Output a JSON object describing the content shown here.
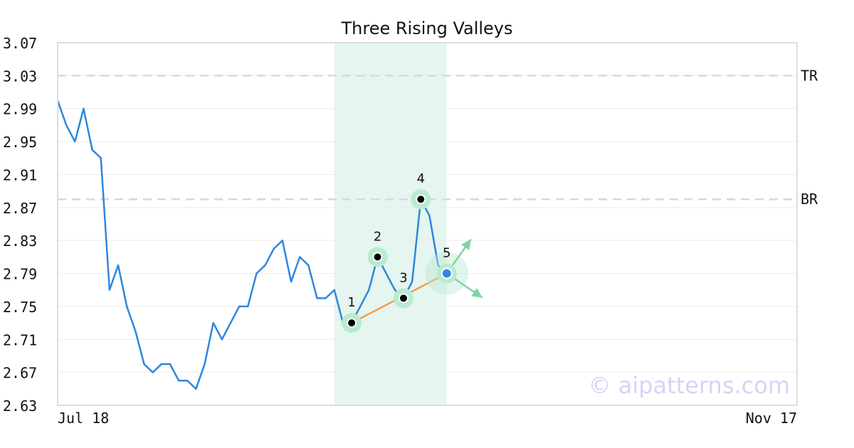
{
  "chart_data": {
    "type": "line",
    "title": "Three Rising Valleys",
    "x_tick_labels": [
      "Jul 18",
      "Nov 17"
    ],
    "y_ticks": [
      3.07,
      3.03,
      2.99,
      2.95,
      2.91,
      2.87,
      2.83,
      2.79,
      2.75,
      2.71,
      2.67,
      2.63
    ],
    "ylim": [
      2.63,
      3.07
    ],
    "grid": true,
    "watermark": "© aipatterns.com",
    "series": [
      {
        "color": "#2e86de",
        "values": [
          3.0,
          2.97,
          2.95,
          2.99,
          2.94,
          2.93,
          2.77,
          2.8,
          2.75,
          2.72,
          2.68,
          2.67,
          2.68,
          2.68,
          2.66,
          2.66,
          2.65,
          2.68,
          2.73,
          2.71,
          2.73,
          2.75,
          2.75,
          2.79,
          2.8,
          2.82,
          2.83,
          2.78,
          2.81,
          2.8,
          2.76,
          2.76,
          2.77,
          2.73,
          2.73,
          2.75,
          2.77,
          2.81,
          2.79,
          2.77,
          2.76,
          2.78,
          2.88,
          2.86,
          2.8,
          2.79
        ]
      }
    ],
    "reference_lines": [
      {
        "label": "TR",
        "value": 3.03
      },
      {
        "label": "BR",
        "value": 2.88
      }
    ],
    "highlight_range": {
      "from_index": 32,
      "to_index": 45,
      "color": "#e5f5ef"
    },
    "pattern_points": [
      {
        "label": "1",
        "index": 34,
        "value": 2.73
      },
      {
        "label": "2",
        "index": 37,
        "value": 2.81
      },
      {
        "label": "3",
        "index": 40,
        "value": 2.76
      },
      {
        "label": "4",
        "index": 42,
        "value": 2.88
      },
      {
        "label": "5",
        "index": 45,
        "value": 2.79
      }
    ],
    "trend_line": {
      "from_point": "1",
      "to_point": "5",
      "color": "#f39c4a"
    },
    "projection_arrows": [
      {
        "direction": "up",
        "color": "#7fd3a6"
      },
      {
        "direction": "down",
        "color": "#7fd3a6"
      }
    ],
    "colors": {
      "line": "#2e86de",
      "marker_halo": "#b9ebd0",
      "final_point": "#2e86de",
      "reference_line": "#d9d9d9",
      "watermark": "#d4d4f7"
    }
  }
}
